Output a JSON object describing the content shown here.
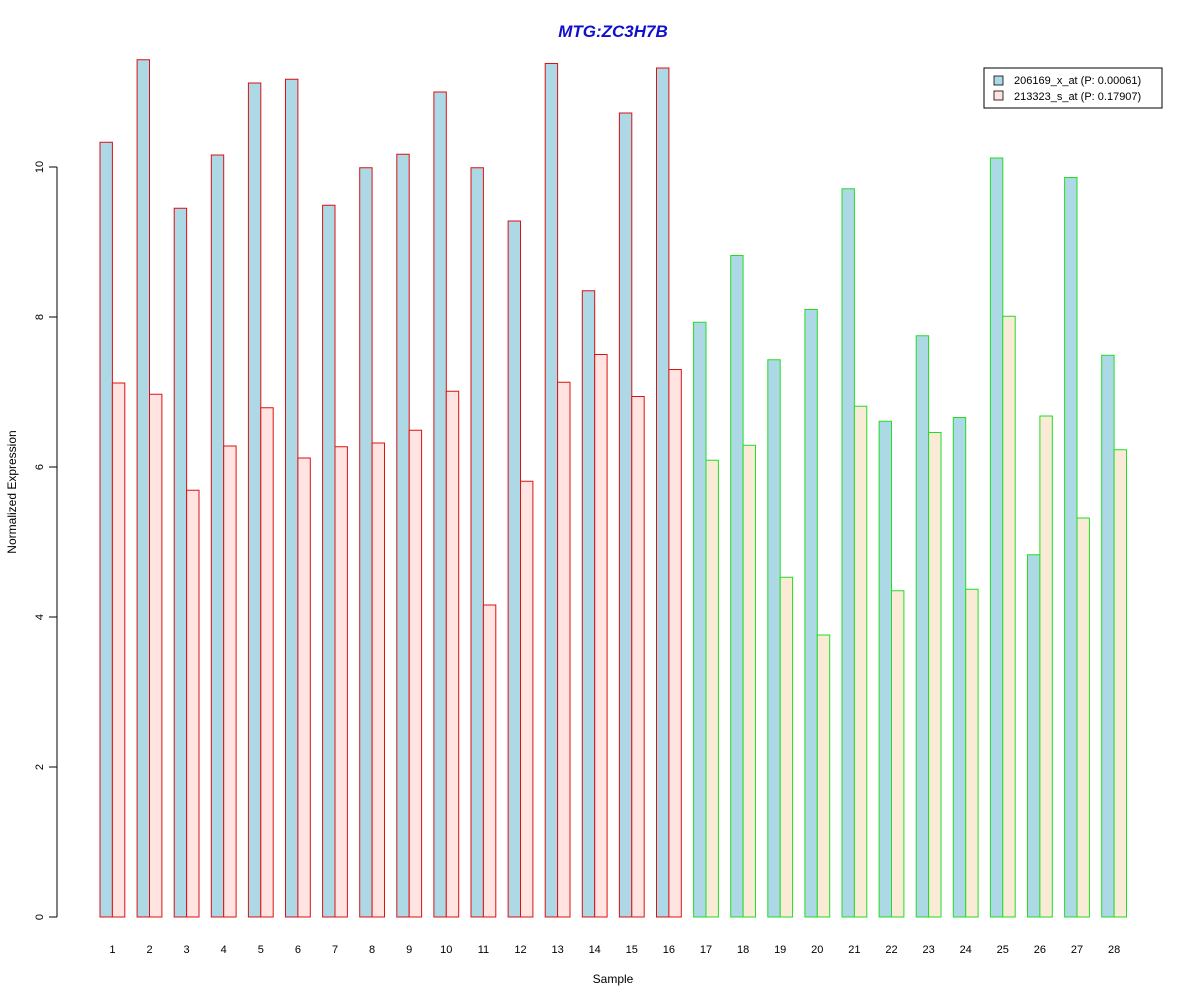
{
  "chart_data": {
    "type": "bar",
    "title": "MTG:ZC3H7B",
    "xlabel": "Sample",
    "ylabel": "Normalized Expression",
    "ylim": [
      0,
      11.5
    ],
    "yticks": [
      0,
      2,
      4,
      6,
      8,
      10
    ],
    "grid": false,
    "legend_position": "top-right",
    "categories": [
      "1",
      "2",
      "3",
      "4",
      "5",
      "6",
      "7",
      "8",
      "9",
      "10",
      "11",
      "12",
      "13",
      "14",
      "15",
      "16",
      "17",
      "18",
      "19",
      "20",
      "21",
      "22",
      "23",
      "24",
      "25",
      "26",
      "27",
      "28"
    ],
    "groups": [
      {
        "samples": [
          "1",
          "2",
          "3",
          "4",
          "5",
          "6",
          "7",
          "8",
          "9",
          "10",
          "11",
          "12",
          "13",
          "14",
          "15",
          "16"
        ],
        "border_color": "#dd1111"
      },
      {
        "samples": [
          "17",
          "18",
          "19",
          "20",
          "21",
          "22",
          "23",
          "24",
          "25",
          "26",
          "27",
          "28"
        ],
        "border_color": "#22dd22"
      }
    ],
    "series": [
      {
        "name": "206169_x_at (P: 0.00061)",
        "fill": "#add8e6",
        "values": [
          10.33,
          11.43,
          9.45,
          10.16,
          11.12,
          11.17,
          9.49,
          9.99,
          10.17,
          11.0,
          9.99,
          9.28,
          11.38,
          8.35,
          10.72,
          11.32,
          7.93,
          8.82,
          7.43,
          8.1,
          9.71,
          6.61,
          7.75,
          6.66,
          10.12,
          4.83,
          9.86,
          7.49
        ]
      },
      {
        "name": "213323_s_at (P: 0.17907)",
        "fill_group1": "#ffe4e1",
        "fill_group2": "#faebd7",
        "values": [
          7.12,
          6.97,
          5.69,
          6.28,
          6.79,
          6.12,
          6.27,
          6.32,
          6.49,
          7.01,
          4.16,
          5.81,
          7.13,
          7.5,
          6.94,
          7.3,
          6.09,
          6.29,
          4.53,
          3.76,
          6.81,
          4.35,
          6.46,
          4.37,
          8.01,
          6.68,
          5.32,
          6.23
        ]
      }
    ]
  }
}
